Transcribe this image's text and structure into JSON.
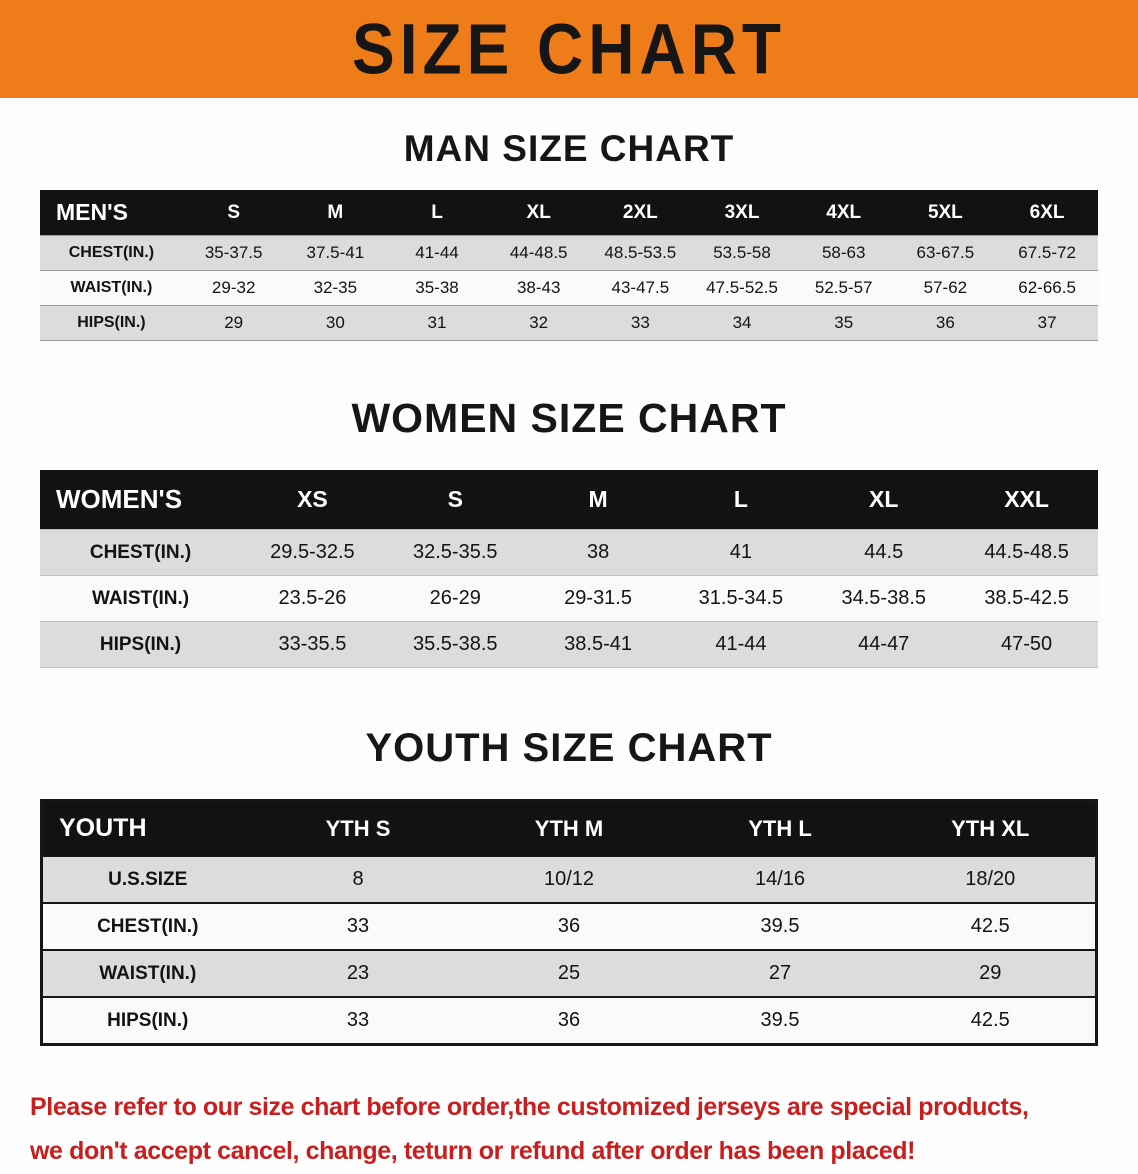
{
  "banner": {
    "title": "SIZE CHART",
    "background": "#EE7C18"
  },
  "sections": [
    {
      "heading": "MAN SIZE CHART",
      "table": {
        "label": "MEN'S",
        "columns": [
          "S",
          "M",
          "L",
          "XL",
          "2XL",
          "3XL",
          "4XL",
          "5XL",
          "6XL"
        ],
        "rows": [
          {
            "label": "CHEST(IN.)",
            "values": [
              "35-37.5",
              "37.5-41",
              "41-44",
              "44-48.5",
              "48.5-53.5",
              "53.5-58",
              "58-63",
              "63-67.5",
              "67.5-72"
            ]
          },
          {
            "label": "WAIST(IN.)",
            "values": [
              "29-32",
              "32-35",
              "35-38",
              "38-43",
              "43-47.5",
              "47.5-52.5",
              "52.5-57",
              "57-62",
              "62-66.5"
            ]
          },
          {
            "label": "HIPS(IN.)",
            "values": [
              "29",
              "30",
              "31",
              "32",
              "33",
              "34",
              "35",
              "36",
              "37"
            ]
          }
        ]
      }
    },
    {
      "heading": "WOMEN SIZE CHART",
      "table": {
        "label": "WOMEN'S",
        "columns": [
          "XS",
          "S",
          "M",
          "L",
          "XL",
          "XXL"
        ],
        "rows": [
          {
            "label": "CHEST(IN.)",
            "values": [
              "29.5-32.5",
              "32.5-35.5",
              "38",
              "41",
              "44.5",
              "44.5-48.5"
            ]
          },
          {
            "label": "WAIST(IN.)",
            "values": [
              "23.5-26",
              "26-29",
              "29-31.5",
              "31.5-34.5",
              "34.5-38.5",
              "38.5-42.5"
            ]
          },
          {
            "label": "HIPS(IN.)",
            "values": [
              "33-35.5",
              "35.5-38.5",
              "38.5-41",
              "41-44",
              "44-47",
              "47-50"
            ]
          }
        ]
      }
    },
    {
      "heading": "YOUTH SIZE CHART",
      "table": {
        "label": "YOUTH",
        "columns": [
          "YTH S",
          "YTH M",
          "YTH L",
          "YTH XL"
        ],
        "rows": [
          {
            "label": "U.S.SIZE",
            "values": [
              "8",
              "10/12",
              "14/16",
              "18/20"
            ]
          },
          {
            "label": "CHEST(IN.)",
            "values": [
              "33",
              "36",
              "39.5",
              "42.5"
            ]
          },
          {
            "label": "WAIST(IN.)",
            "values": [
              "23",
              "25",
              "27",
              "29"
            ]
          },
          {
            "label": "HIPS(IN.)",
            "values": [
              "33",
              "36",
              "39.5",
              "42.5"
            ]
          }
        ]
      }
    }
  ],
  "footer": {
    "line1": "Please refer to our size chart before order,the customized jerseys are special products,",
    "line2": "we don't accept cancel, change, teturn or refund after order has been placed!",
    "color": "#C81E1E"
  }
}
